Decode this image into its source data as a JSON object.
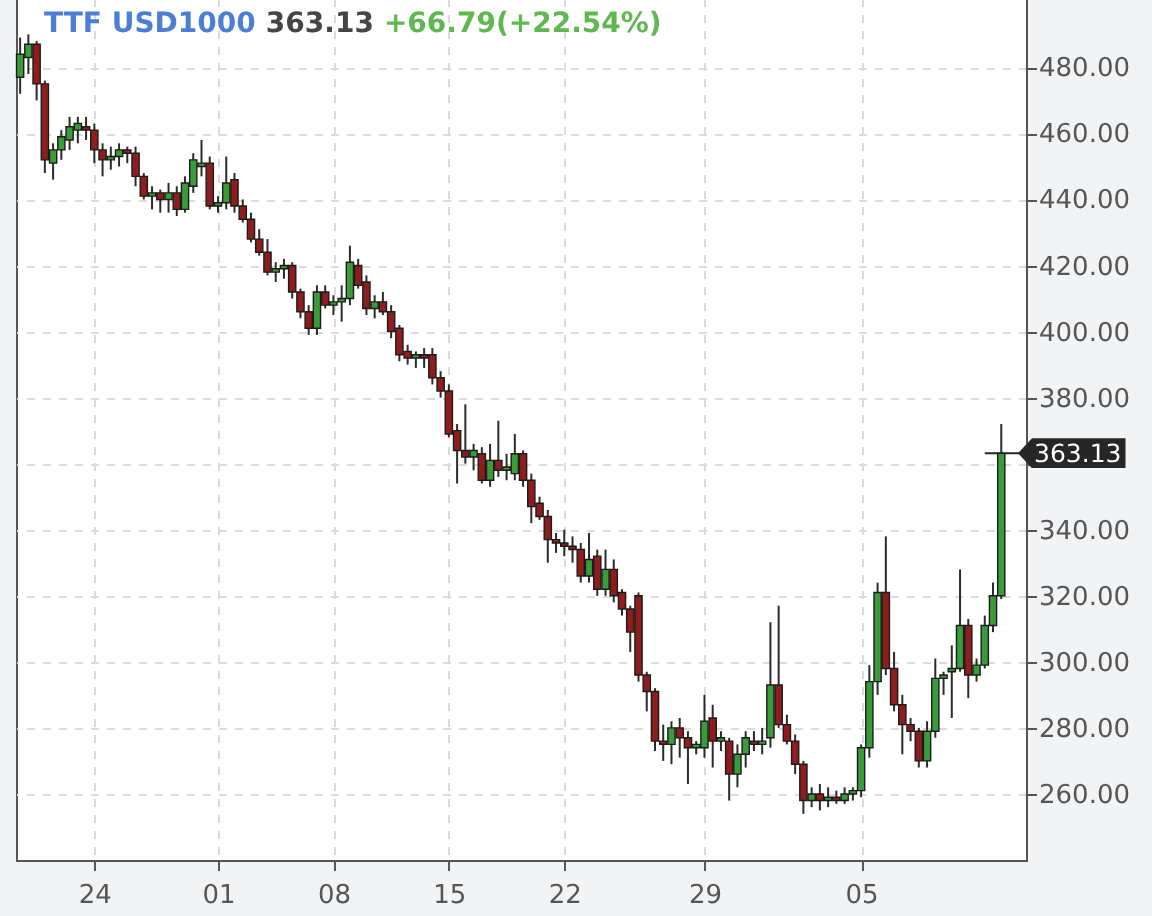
{
  "chart_data": {
    "type": "candlestick",
    "title": "TTF USD1000",
    "annotations": [
      "363.13",
      "+66.79(+22.54%)"
    ],
    "ref_lines": [
      {
        "axis": "y",
        "value": 363.13,
        "label": "363.13",
        "color": "#262626"
      }
    ],
    "categories": [
      null,
      null,
      null,
      null,
      null,
      null,
      null,
      null,
      null,
      "24",
      null,
      null,
      null,
      null,
      null,
      null,
      null,
      null,
      null,
      null,
      null,
      null,
      null,
      null,
      "01",
      null,
      null,
      null,
      null,
      null,
      null,
      null,
      null,
      null,
      null,
      null,
      null,
      null,
      "08",
      null,
      null,
      null,
      null,
      null,
      null,
      null,
      null,
      null,
      null,
      null,
      null,
      null,
      "15",
      null,
      null,
      null,
      null,
      null,
      null,
      null,
      null,
      null,
      null,
      null,
      null,
      null,
      "22",
      null,
      null,
      null,
      null,
      null,
      null,
      null,
      null,
      null,
      null,
      null,
      null,
      null,
      null,
      null,
      null,
      "29",
      null,
      null,
      null,
      null,
      null,
      null,
      null,
      null,
      null,
      null,
      null,
      null,
      null,
      null,
      null,
      null,
      null,
      null,
      "05",
      null,
      null,
      null,
      null,
      null,
      null,
      null,
      null,
      null,
      null,
      null,
      null,
      null,
      null,
      null,
      null,
      null
    ],
    "ohlc": [
      [
        477,
        489,
        472,
        484
      ],
      [
        483,
        490,
        478,
        487
      ],
      [
        487,
        488,
        470,
        475
      ],
      [
        475,
        476,
        448,
        452
      ],
      [
        451,
        457,
        446,
        455
      ],
      [
        455,
        461,
        452,
        459
      ],
      [
        458,
        465,
        455,
        462
      ],
      [
        461,
        465,
        457,
        463
      ],
      [
        462,
        465,
        458,
        461
      ],
      [
        461,
        463,
        451,
        455
      ],
      [
        455,
        457,
        447,
        452
      ],
      [
        452,
        456,
        449,
        453
      ],
      [
        453,
        457,
        450,
        455
      ],
      [
        455,
        456,
        451,
        454
      ],
      [
        454,
        456,
        444,
        447
      ],
      [
        447,
        448,
        440,
        441
      ],
      [
        441,
        444,
        437,
        442
      ],
      [
        442,
        443,
        436,
        440
      ],
      [
        440,
        445,
        436,
        442
      ],
      [
        442,
        444,
        435,
        437
      ],
      [
        437,
        447,
        436,
        445
      ],
      [
        444,
        454,
        442,
        452
      ],
      [
        450,
        458,
        447,
        451
      ],
      [
        451,
        453,
        437,
        438
      ],
      [
        438,
        441,
        436,
        439
      ],
      [
        439,
        453,
        437,
        445
      ],
      [
        446,
        448,
        436,
        438
      ],
      [
        438,
        440,
        433,
        434
      ],
      [
        434,
        436,
        427,
        428
      ],
      [
        428,
        431,
        423,
        424
      ],
      [
        424,
        428,
        417,
        418
      ],
      [
        418,
        421,
        415,
        419
      ],
      [
        419,
        422,
        416,
        420
      ],
      [
        420,
        421,
        410,
        412
      ],
      [
        412,
        413,
        404,
        406
      ],
      [
        406,
        408,
        399,
        401
      ],
      [
        401,
        414,
        399,
        412
      ],
      [
        412,
        414,
        407,
        408
      ],
      [
        408,
        411,
        405,
        409
      ],
      [
        409,
        414,
        403,
        410
      ],
      [
        410,
        426,
        408,
        421
      ],
      [
        420,
        422,
        413,
        414
      ],
      [
        415,
        417,
        405,
        407
      ],
      [
        407,
        411,
        404,
        409
      ],
      [
        409,
        412,
        405,
        406
      ],
      [
        406,
        408,
        398,
        400
      ],
      [
        401,
        402,
        391,
        393
      ],
      [
        394,
        396,
        390,
        392
      ],
      [
        392,
        394,
        389,
        393
      ],
      [
        393,
        395,
        389,
        392
      ],
      [
        393,
        395,
        384,
        386
      ],
      [
        386,
        388,
        380,
        382
      ],
      [
        382,
        384,
        368,
        369
      ],
      [
        370,
        372,
        354,
        364
      ],
      [
        364,
        378,
        360,
        362
      ],
      [
        362,
        366,
        358,
        364
      ],
      [
        363,
        365,
        354,
        355
      ],
      [
        355,
        366,
        353,
        361
      ],
      [
        361,
        373,
        356,
        358
      ],
      [
        358,
        363,
        355,
        359
      ],
      [
        357,
        369,
        355,
        363
      ],
      [
        363,
        364,
        353,
        355
      ],
      [
        355,
        357,
        342,
        347
      ],
      [
        348,
        350,
        343,
        344
      ],
      [
        344,
        346,
        330,
        337
      ],
      [
        337,
        339,
        333,
        336
      ],
      [
        336,
        340,
        332,
        335
      ],
      [
        335,
        338,
        330,
        334
      ],
      [
        334,
        336,
        324,
        326
      ],
      [
        326,
        339,
        324,
        331
      ],
      [
        332,
        334,
        320,
        322
      ],
      [
        322,
        334,
        320,
        328
      ],
      [
        328,
        331,
        318,
        320
      ],
      [
        321,
        322,
        314,
        316
      ],
      [
        316,
        317,
        303,
        309
      ],
      [
        320,
        321,
        294,
        296
      ],
      [
        296,
        297,
        285,
        291
      ],
      [
        291,
        292,
        273,
        276
      ],
      [
        276,
        281,
        270,
        275
      ],
      [
        275,
        282,
        269,
        280
      ],
      [
        280,
        283,
        271,
        277
      ],
      [
        277,
        279,
        263,
        274
      ],
      [
        274,
        276,
        272,
        275
      ],
      [
        274,
        290,
        271,
        282
      ],
      [
        283,
        287,
        268,
        276
      ],
      [
        276,
        279,
        273,
        277
      ],
      [
        276,
        277,
        258,
        266
      ],
      [
        266,
        275,
        262,
        272
      ],
      [
        272,
        279,
        268,
        277
      ],
      [
        276,
        279,
        273,
        275
      ],
      [
        275,
        280,
        272,
        276
      ],
      [
        277,
        312,
        274,
        293
      ],
      [
        293,
        317,
        280,
        281
      ],
      [
        281,
        284,
        275,
        276
      ],
      [
        276,
        278,
        266,
        269
      ],
      [
        269,
        270,
        254,
        258
      ],
      [
        258,
        262,
        256,
        260
      ],
      [
        260,
        263,
        255,
        258
      ],
      [
        258,
        262,
        256,
        259
      ],
      [
        259,
        261,
        257,
        258
      ],
      [
        258,
        262,
        257,
        260
      ],
      [
        260,
        262,
        258,
        261
      ],
      [
        261,
        275,
        259,
        274
      ],
      [
        274,
        299,
        271,
        294
      ],
      [
        294,
        324,
        290,
        321
      ],
      [
        321,
        338,
        296,
        298
      ],
      [
        298,
        303,
        285,
        287
      ],
      [
        287,
        290,
        272,
        281
      ],
      [
        281,
        283,
        276,
        279
      ],
      [
        279,
        280,
        268,
        270
      ],
      [
        270,
        282,
        268,
        279
      ],
      [
        279,
        301,
        277,
        295
      ],
      [
        295,
        297,
        290,
        296
      ],
      [
        297,
        305,
        283,
        298
      ],
      [
        298,
        328,
        297,
        311
      ],
      [
        311,
        313,
        289,
        296
      ],
      [
        296,
        301,
        294,
        299
      ],
      [
        299,
        314,
        298,
        311
      ],
      [
        311,
        324,
        309,
        320
      ],
      [
        320,
        372,
        319,
        363.13
      ]
    ],
    "colors": [
      "#3a9b3a",
      "#3a9b3a",
      "#8e1e1e",
      "#8e1e1e",
      "#3a9b3a",
      "#3a9b3a",
      "#3a9b3a",
      "#3a9b3a",
      "#8e1e1e",
      "#8e1e1e",
      "#8e1e1e",
      "#3a9b3a",
      "#3a9b3a",
      "#8e1e1e",
      "#8e1e1e",
      "#8e1e1e",
      "#3a9b3a",
      "#8e1e1e",
      "#3a9b3a",
      "#8e1e1e",
      "#3a9b3a",
      "#3a9b3a",
      "#3a9b3a",
      "#8e1e1e",
      "#3a9b3a",
      "#3a9b3a",
      "#8e1e1e",
      "#8e1e1e",
      "#8e1e1e",
      "#8e1e1e",
      "#8e1e1e",
      "#3a9b3a",
      "#3a9b3a",
      "#8e1e1e",
      "#8e1e1e",
      "#8e1e1e",
      "#3a9b3a",
      "#8e1e1e",
      "#3a9b3a",
      "#3a9b3a",
      "#3a9b3a",
      "#8e1e1e",
      "#8e1e1e",
      "#3a9b3a",
      "#8e1e1e",
      "#8e1e1e",
      "#8e1e1e",
      "#8e1e1e",
      "#3a9b3a",
      "#8e1e1e",
      "#8e1e1e",
      "#8e1e1e",
      "#8e1e1e",
      "#8e1e1e",
      "#8e1e1e",
      "#3a9b3a",
      "#8e1e1e",
      "#3a9b3a",
      "#8e1e1e",
      "#3a9b3a",
      "#3a9b3a",
      "#8e1e1e",
      "#8e1e1e",
      "#8e1e1e",
      "#8e1e1e",
      "#8e1e1e",
      "#8e1e1e",
      "#8e1e1e",
      "#8e1e1e",
      "#3a9b3a",
      "#8e1e1e",
      "#3a9b3a",
      "#8e1e1e",
      "#8e1e1e",
      "#8e1e1e",
      "#8e1e1e",
      "#8e1e1e",
      "#8e1e1e",
      "#8e1e1e",
      "#3a9b3a",
      "#8e1e1e",
      "#8e1e1e",
      "#3a9b3a",
      "#3a9b3a",
      "#8e1e1e",
      "#3a9b3a",
      "#8e1e1e",
      "#3a9b3a",
      "#3a9b3a",
      "#8e1e1e",
      "#3a9b3a",
      "#3a9b3a",
      "#8e1e1e",
      "#8e1e1e",
      "#8e1e1e",
      "#8e1e1e",
      "#3a9b3a",
      "#8e1e1e",
      "#3a9b3a",
      "#8e1e1e",
      "#3a9b3a",
      "#3a9b3a",
      "#3a9b3a",
      "#3a9b3a",
      "#3a9b3a",
      "#8e1e1e",
      "#8e1e1e",
      "#8e1e1e",
      "#8e1e1e",
      "#8e1e1e",
      "#3a9b3a",
      "#3a9b3a",
      "#3a9b3a",
      "#3a9b3a",
      "#3a9b3a",
      "#8e1e1e",
      "#3a9b3a",
      "#3a9b3a",
      "#3a9b3a",
      "#3a9b3a"
    ],
    "ylim": [
      240,
      501
    ],
    "yticks": [
      {
        "value": 260,
        "label": "260.00"
      },
      {
        "value": 280,
        "label": "280.00"
      },
      {
        "value": 300,
        "label": "300.00"
      },
      {
        "value": 320,
        "label": "320.00"
      },
      {
        "value": 340,
        "label": "340.00"
      },
      {
        "value": 360,
        "label": null
      },
      {
        "value": 380,
        "label": "380.00"
      },
      {
        "value": 400,
        "label": "400.00"
      },
      {
        "value": 420,
        "label": "420.00"
      },
      {
        "value": 440,
        "label": "440.00"
      },
      {
        "value": 460,
        "label": "460.00"
      },
      {
        "value": 480,
        "label": "480.00"
      }
    ],
    "grid": true
  }
}
